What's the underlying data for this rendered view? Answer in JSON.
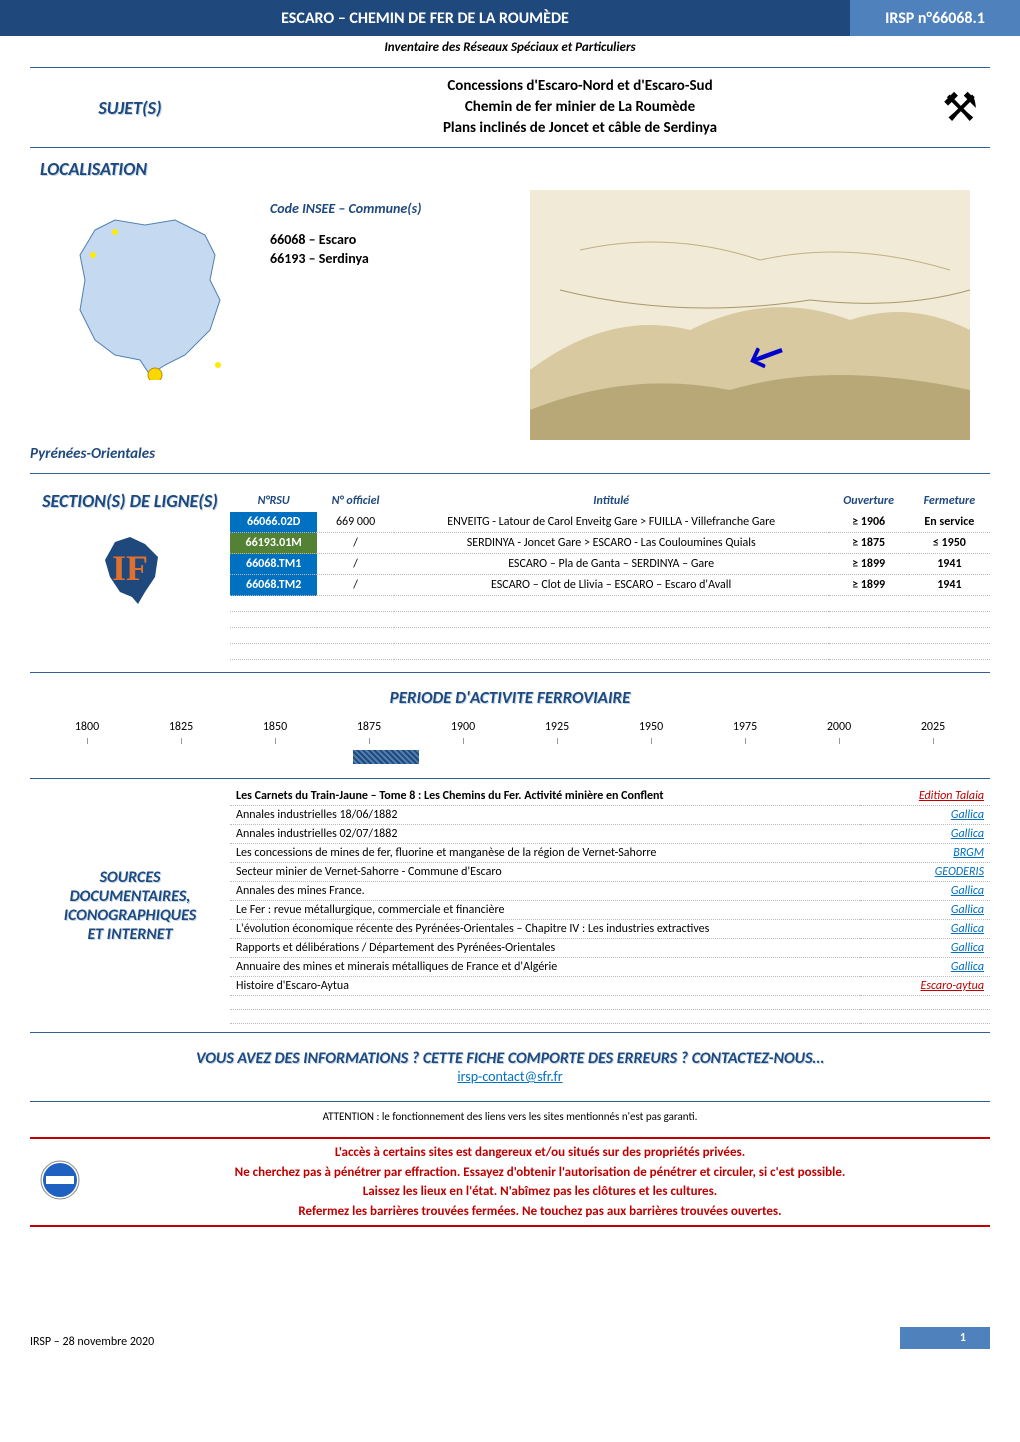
{
  "header": {
    "title": "ESCARO – CHEMIN DE FER DE LA ROUMÈDE",
    "code": "IRSP n°66068.1",
    "subtitle": "Inventaire des Réseaux Spéciaux et Particuliers"
  },
  "sujet": {
    "label": "SUJET(S)",
    "lines": [
      "Concessions d'Escaro-Nord et d'Escaro-Sud",
      "Chemin de fer minier de La Roumède",
      "Plans inclinés de Joncet et câble de Serdinya"
    ],
    "icon": "⚒"
  },
  "localisation": {
    "label": "LOCALISATION",
    "insee_label": "Code INSEE – Commune(s)",
    "communes": [
      "66068 – Escaro",
      "66193 – Serdinya"
    ],
    "region": "Pyrénées-Orientales"
  },
  "sections": {
    "label": "SECTION(S) DE LIGNE(S)",
    "columns": [
      "N°RSU",
      "N° officiel",
      "Intitulé",
      "Ouverture",
      "Fermeture"
    ],
    "rows": [
      {
        "nrsu": "66066.02D",
        "nrsu_bg": "#0070c0",
        "officiel": "669 000",
        "intitule": "ENVEITG - Latour de Carol Enveitg Gare > FUILLA - Villefranche Gare",
        "ouv": "≥ 1906",
        "ferm": "En service"
      },
      {
        "nrsu": "66193.01M",
        "nrsu_bg": "#548235",
        "officiel": "/",
        "intitule": "SERDINYA - Joncet Gare > ESCARO - Las Couloumines Quials",
        "ouv": "≥ 1875",
        "ferm": "≤ 1950"
      },
      {
        "nrsu": "66068.TM1",
        "nrsu_bg": "#0070c0",
        "officiel": "/",
        "intitule": "ESCARO – Pla de Ganta – SERDINYA – Gare",
        "ouv": "≥ 1899",
        "ferm": "1941"
      },
      {
        "nrsu": "66068.TM2",
        "nrsu_bg": "#0070c0",
        "officiel": "/",
        "intitule": "ESCARO – Clot de Llivia – ESCARO – Escaro d'Avall",
        "ouv": "≥ 1899",
        "ferm": "1941"
      }
    ]
  },
  "periode": {
    "label": "PERIODE D'ACTIVITE FERROVIAIRE",
    "years": [
      "1800",
      "1825",
      "1850",
      "1875",
      "1900",
      "1925",
      "1950",
      "1975",
      "2000",
      "2025"
    ],
    "start_pct": 33.3,
    "width_pct": 7
  },
  "sources": {
    "labels": [
      "SOURCES",
      "DOCUMENTAIRES,",
      "ICONOGRAPHIQUES",
      "ET INTERNET"
    ],
    "rows": [
      {
        "text": "Les Carnets du Train-Jaune – Tome 8 : Les Chemins du Fer. Activité minière en Conflent",
        "bold": true,
        "link": "Edition Talaia",
        "link_color": "#c00000"
      },
      {
        "text": "Annales industrielles 18/06/1882",
        "link": "Gallica",
        "link_color": "#0070c0"
      },
      {
        "text": "Annales industrielles 02/07/1882",
        "link": "Gallica",
        "link_color": "#0070c0"
      },
      {
        "text": "Les concessions de mines de fer, fluorine et manganèse de la région de Vernet-Sahorre",
        "link": "BRGM",
        "link_color": "#0070c0"
      },
      {
        "text": "Secteur minier de Vernet-Sahorre - Commune d'Escaro",
        "link": "GEODERIS",
        "link_color": "#0070c0"
      },
      {
        "text": "Annales des mines France.",
        "link": "Gallica",
        "link_color": "#0070c0"
      },
      {
        "text": "Le Fer : revue métallurgique, commerciale et financière",
        "link": "Gallica",
        "link_color": "#0070c0"
      },
      {
        "text": "L'évolution économique récente des Pyrénées-Orientales – Chapitre IV : Les industries extractives",
        "link": "Gallica",
        "link_color": "#0070c0"
      },
      {
        "text": "Rapports et délibérations / Département des Pyrénées-Orientales",
        "link": "Gallica",
        "link_color": "#0070c0"
      },
      {
        "text": "Annuaire des mines et minerais métalliques de France et d'Algérie",
        "link": "Gallica",
        "link_color": "#0070c0"
      },
      {
        "text": "Histoire d'Escaro-Aytua",
        "link": "Escaro-aytua",
        "link_color": "#c00000"
      }
    ]
  },
  "contact": {
    "title": "VOUS AVEZ DES INFORMATIONS ? CETTE FICHE COMPORTE DES ERREURS ? CONTACTEZ-NOUS…",
    "mail": "irsp-contact@sfr.fr",
    "attention": "ATTENTION : le fonctionnement des liens vers les sites mentionnés n'est pas garanti."
  },
  "warning": {
    "lines": [
      "L'accès à certains sites est dangereux et/ou situés sur des propriétés privées.",
      "Ne cherchez pas à pénétrer par effraction. Essayez d'obtenir l'autorisation de pénétrer et circuler, si c'est possible.",
      "Laissez les lieux en l'état. N'abîmez pas les clôtures et les cultures.",
      "Refermez les barrières trouvées fermées. Ne touchez pas aux barrières trouvées ouvertes."
    ]
  },
  "footer": {
    "date": "IRSP – 28 novembre 2020",
    "page": "1"
  },
  "colors": {
    "header_blue": "#1f497d",
    "header_light": "#4f81bd",
    "accent": "#0070c0",
    "red": "#c00000",
    "green": "#548235"
  }
}
